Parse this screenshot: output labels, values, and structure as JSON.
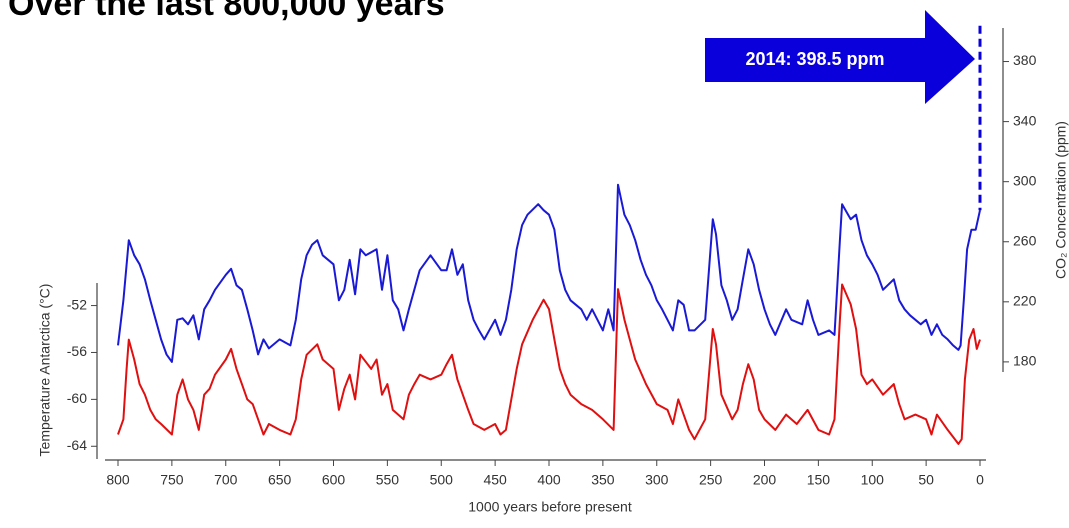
{
  "chart_data": {
    "type": "line",
    "title": "Over the last 800,000 years",
    "x_label": "1000 years before present",
    "y_label": "Temperature Antarctica (°C)",
    "y2_label": "CO₂ Concentration (ppm)",
    "annotation": {
      "label": "2014: 398.5 ppm",
      "value": 398.5,
      "color": "#0a00dc"
    },
    "xlim": [
      800,
      0
    ],
    "xticks": [
      800,
      750,
      700,
      650,
      600,
      550,
      500,
      450,
      400,
      350,
      300,
      250,
      200,
      150,
      100,
      50,
      0
    ],
    "ylim": [
      -65,
      -28.5
    ],
    "yticks": [
      -52,
      -56,
      -60,
      -64
    ],
    "y2lim": [
      116,
      401
    ],
    "y2ticks": [
      180,
      220,
      260,
      300,
      340,
      380
    ],
    "series": [
      {
        "name": "CO₂",
        "color": "#1a1ad6",
        "axis": "y2",
        "x": [
          800,
          795,
          790,
          785,
          780,
          775,
          770,
          765,
          760,
          755,
          750,
          745,
          740,
          735,
          730,
          725,
          720,
          715,
          710,
          700,
          695,
          690,
          685,
          680,
          675,
          670,
          665,
          660,
          650,
          640,
          635,
          630,
          625,
          620,
          615,
          610,
          600,
          595,
          590,
          585,
          580,
          575,
          570,
          560,
          555,
          550,
          545,
          540,
          535,
          530,
          525,
          520,
          510,
          500,
          495,
          490,
          485,
          480,
          475,
          470,
          465,
          460,
          450,
          445,
          440,
          435,
          430,
          425,
          420,
          410,
          405,
          400,
          395,
          390,
          385,
          380,
          370,
          365,
          360,
          350,
          345,
          340,
          336,
          330,
          325,
          320,
          315,
          310,
          305,
          300,
          295,
          290,
          285,
          280,
          275,
          270,
          265,
          255,
          248,
          245,
          240,
          235,
          230,
          225,
          220,
          215,
          210,
          205,
          200,
          195,
          190,
          180,
          175,
          165,
          160,
          155,
          150,
          140,
          135,
          130,
          128,
          120,
          115,
          110,
          105,
          100,
          95,
          90,
          80,
          75,
          70,
          65,
          60,
          55,
          50,
          45,
          40,
          35,
          30,
          25,
          20,
          18,
          15,
          12,
          8,
          4,
          0
        ],
        "values": [
          191,
          221,
          261,
          251,
          245,
          235,
          221,
          208,
          195,
          185,
          180,
          208,
          209,
          205,
          211,
          195,
          215,
          221,
          228,
          238,
          242,
          231,
          228,
          215,
          201,
          185,
          195,
          189,
          195,
          191,
          208,
          235,
          251,
          258,
          261,
          251,
          245,
          221,
          228,
          248,
          225,
          255,
          251,
          255,
          228,
          251,
          221,
          215,
          201,
          215,
          228,
          241,
          251,
          241,
          241,
          255,
          238,
          245,
          221,
          208,
          201,
          195,
          208,
          198,
          208,
          228,
          255,
          271,
          278,
          285,
          281,
          278,
          268,
          241,
          228,
          221,
          215,
          208,
          215,
          201,
          215,
          201,
          298,
          278,
          271,
          261,
          248,
          238,
          231,
          221,
          215,
          208,
          201,
          221,
          218,
          201,
          201,
          208,
          275,
          265,
          231,
          221,
          208,
          215,
          235,
          255,
          245,
          228,
          215,
          205,
          198,
          215,
          208,
          205,
          221,
          208,
          198,
          201,
          198,
          261,
          285,
          275,
          278,
          261,
          251,
          245,
          238,
          228,
          235,
          221,
          215,
          211,
          208,
          205,
          208,
          198,
          205,
          198,
          195,
          191,
          188,
          191,
          221,
          255,
          268,
          268,
          281
        ]
      },
      {
        "name": "Temperature",
        "color": "#e01010",
        "axis": "y",
        "x": [
          800,
          795,
          792,
          790,
          785,
          780,
          775,
          770,
          765,
          760,
          750,
          745,
          740,
          735,
          730,
          725,
          720,
          715,
          710,
          700,
          695,
          690,
          685,
          680,
          675,
          670,
          665,
          660,
          650,
          640,
          635,
          630,
          625,
          615,
          610,
          600,
          595,
          590,
          585,
          580,
          575,
          565,
          560,
          555,
          550,
          545,
          540,
          535,
          530,
          525,
          520,
          510,
          500,
          495,
          490,
          485,
          480,
          475,
          470,
          460,
          450,
          445,
          440,
          435,
          430,
          425,
          415,
          405,
          400,
          395,
          390,
          385,
          380,
          370,
          360,
          350,
          340,
          336,
          330,
          325,
          320,
          310,
          300,
          290,
          285,
          280,
          270,
          265,
          255,
          248,
          245,
          240,
          230,
          225,
          220,
          215,
          210,
          205,
          200,
          190,
          180,
          170,
          160,
          150,
          140,
          135,
          130,
          128,
          120,
          115,
          110,
          105,
          100,
          90,
          80,
          75,
          70,
          60,
          50,
          45,
          40,
          30,
          20,
          17,
          14,
          10,
          6,
          3,
          0
        ],
        "values": [
          -63.0,
          -61.7,
          -57.4,
          -54.9,
          -56.6,
          -58.7,
          -59.6,
          -60.9,
          -61.7,
          -62.1,
          -63.0,
          -59.6,
          -58.3,
          -60.0,
          -60.9,
          -62.6,
          -59.6,
          -59.1,
          -57.9,
          -56.6,
          -55.7,
          -57.4,
          -58.7,
          -60.0,
          -60.4,
          -61.7,
          -63.0,
          -62.1,
          -62.6,
          -63.0,
          -61.7,
          -58.3,
          -56.2,
          -55.3,
          -56.6,
          -57.4,
          -60.9,
          -59.1,
          -57.9,
          -60.0,
          -56.2,
          -57.4,
          -56.6,
          -59.6,
          -58.7,
          -60.9,
          -61.3,
          -61.7,
          -59.6,
          -58.7,
          -57.9,
          -58.3,
          -57.9,
          -57.0,
          -56.2,
          -58.3,
          -59.6,
          -60.9,
          -62.1,
          -62.6,
          -62.1,
          -63.0,
          -62.6,
          -60.0,
          -57.4,
          -55.3,
          -53.2,
          -51.5,
          -52.3,
          -54.9,
          -57.4,
          -58.7,
          -59.6,
          -60.4,
          -60.9,
          -61.7,
          -62.6,
          -50.6,
          -53.2,
          -54.9,
          -56.6,
          -58.7,
          -60.4,
          -60.9,
          -62.1,
          -60.0,
          -62.6,
          -63.4,
          -61.7,
          -54.0,
          -55.3,
          -59.6,
          -61.7,
          -60.9,
          -58.7,
          -57.0,
          -58.3,
          -60.9,
          -61.7,
          -62.6,
          -61.3,
          -62.1,
          -60.9,
          -62.6,
          -63.0,
          -61.7,
          -53.2,
          -50.2,
          -51.9,
          -54.0,
          -57.9,
          -58.7,
          -58.3,
          -59.6,
          -58.7,
          -60.4,
          -61.7,
          -61.3,
          -61.7,
          -63.0,
          -61.3,
          -62.6,
          -63.8,
          -63.4,
          -58.3,
          -54.9,
          -54.0,
          -55.7,
          -54.9
        ]
      }
    ]
  }
}
